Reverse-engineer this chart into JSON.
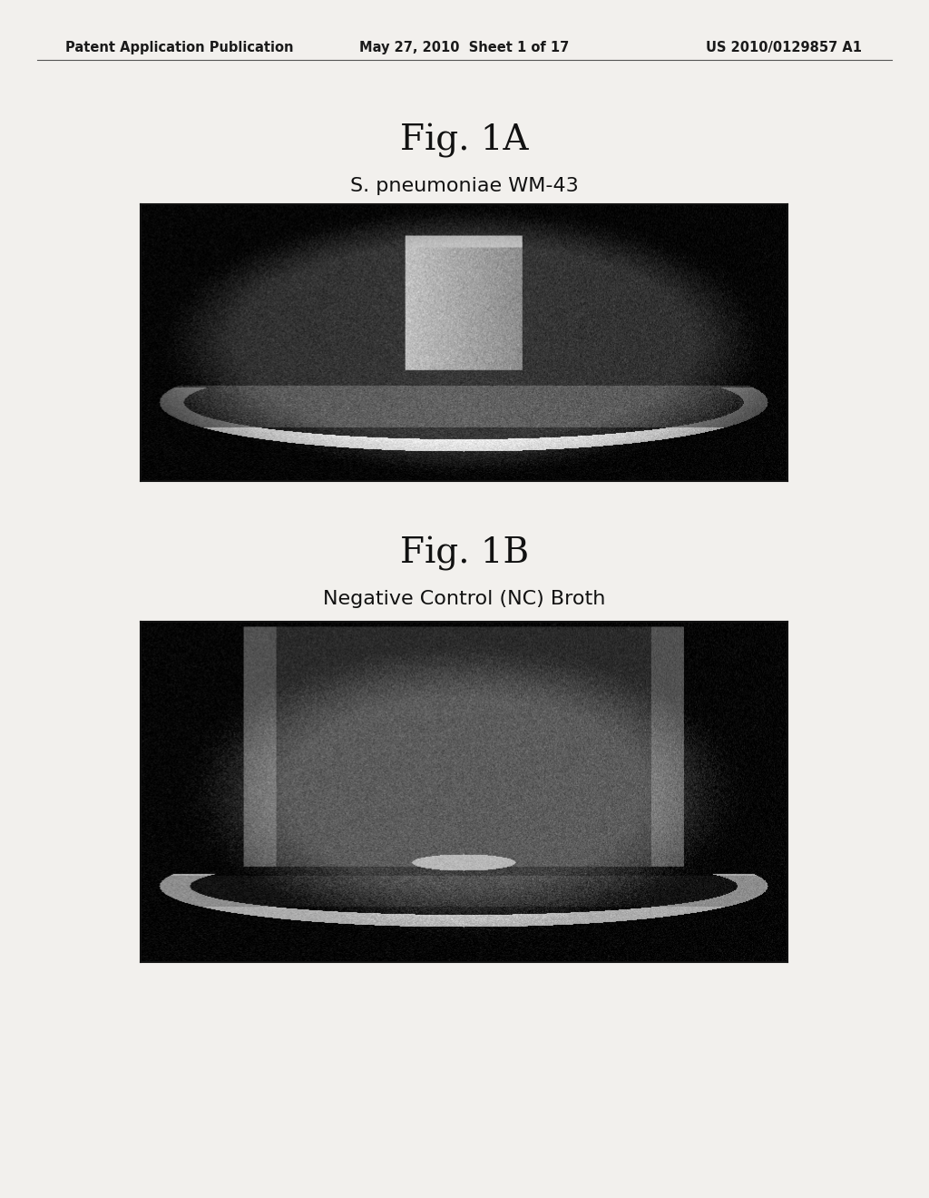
{
  "bg_color": "#f0eeeb",
  "header_left": "Patent Application Publication",
  "header_center": "May 27, 2010  Sheet 1 of 17",
  "header_right": "US 2010/0129857 A1",
  "fig1a_title": "Fig. 1A",
  "fig1a_subtitle": "S. pneumoniae WM-43",
  "fig1b_title": "Fig. 1B",
  "fig1b_subtitle": "Negative Control (NC) Broth",
  "header_fontsize": 10.5,
  "fig_title_fontsize": 28,
  "subtitle_fontsize": 16,
  "page_bg": "#f2f0ed"
}
